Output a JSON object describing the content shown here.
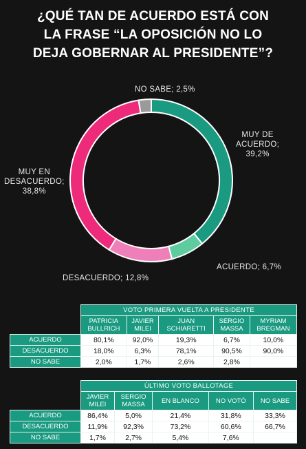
{
  "title_lines": [
    "¿QUÉ TAN DE ACUERDO ESTÁ CON",
    "LA FRASE “LA OPOSICIÓN NO LO",
    "DEJA GOBERNAR AL PRESIDENTE”?"
  ],
  "chart_data": {
    "type": "pie",
    "variant": "donut",
    "title": "¿QUÉ TAN DE ACUERDO ESTÁ CON LA FRASE “LA OPOSICIÓN NO LO DEJA GOBERNAR AL PRESIDENTE”?",
    "slices": [
      {
        "label": "MUY DE ACUERDO; 39,2%",
        "name": "MUY DE ACUERDO",
        "value": 39.2,
        "color": "#1a9a80"
      },
      {
        "label": "ACUERDO; 6,7%",
        "name": "ACUERDO",
        "value": 6.7,
        "color": "#5fcca0"
      },
      {
        "label": "DESACUERDO; 12,8%",
        "name": "DESACUERDO",
        "value": 12.8,
        "color": "#ef7fb8"
      },
      {
        "label": "MUY EN DESACUERDO; 38,8%",
        "name": "MUY EN DESACUERDO",
        "value": 38.8,
        "color": "#ee2a7b"
      },
      {
        "label": "NO SABE; 2,5%",
        "name": "NO SABE",
        "value": 2.5,
        "color": "#9a9a9a"
      }
    ]
  },
  "slice_labels": {
    "muy_de_acuerdo": "MUY DE\nACUERDO;\n39,2%",
    "acuerdo": "ACUERDO; 6,7%",
    "desacuerdo": "DESACUERDO; 12,8%",
    "muy_en_desacuerdo": "MUY EN\nDESACUERDO;\n38,8%",
    "no_sabe": "NO SABE; 2,5%"
  },
  "table1": {
    "header": "VOTO PRIMERA VUELTA A PRESIDENTE",
    "columns": [
      "PATRICIA\nBULLRICH",
      "JAVIER\nMILEI",
      "JUAN\nSCHIARETTI",
      "SERGIO\nMASSA",
      "MYRIAM\nBREGMAN"
    ],
    "rows": [
      {
        "label": "ACUERDO",
        "values": [
          "80,1%",
          "92,0%",
          "19,3%",
          "6,7%",
          "10,0%"
        ]
      },
      {
        "label": "DESACUERDO",
        "values": [
          "18,0%",
          "6,3%",
          "78,1%",
          "90,5%",
          "90,0%"
        ]
      },
      {
        "label": "NO SABE",
        "values": [
          "2,0%",
          "1,7%",
          "2,6%",
          "2,8%",
          ""
        ]
      }
    ]
  },
  "table2": {
    "header": "ÚLTIMO VOTO BALLOTAGE",
    "columns": [
      "JAVIER\nMILEI",
      "SERGIO\nMASSA",
      "EN BLANCO",
      "NO VOTÓ",
      "NO SABE"
    ],
    "rows": [
      {
        "label": "ACUERDO",
        "values": [
          "86,4%",
          "5,0%",
          "21,4%",
          "31,8%",
          "33,3%"
        ]
      },
      {
        "label": "DESACUERDO",
        "values": [
          "11,9%",
          "92,3%",
          "73,2%",
          "60,6%",
          "66,7%"
        ]
      },
      {
        "label": "NO SABE",
        "values": [
          "1,7%",
          "2,7%",
          "5,4%",
          "7,6%",
          ""
        ]
      }
    ]
  }
}
